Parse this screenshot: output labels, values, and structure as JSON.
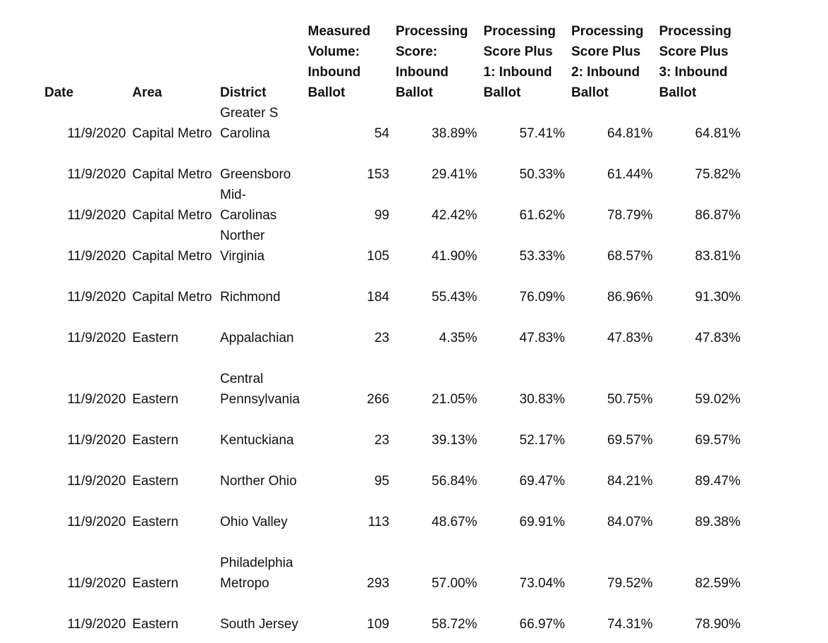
{
  "table": {
    "headers": [
      "Date",
      "Area",
      "District",
      "Measured Volume: Inbound Ballot",
      "Processing Score: Inbound Ballot",
      "Processing Score Plus 1: Inbound Ballot",
      "Processing Score Plus 2: Inbound Ballot",
      "Processing Score Plus 3: Inbound Ballot"
    ],
    "rows": [
      [
        "11/9/2020",
        "Capital Metro",
        "Greater S Carolina",
        "54",
        "38.89%",
        "57.41%",
        "64.81%",
        "64.81%"
      ],
      [
        "11/9/2020",
        "Capital Metro",
        "Greensboro",
        "153",
        "29.41%",
        "50.33%",
        "61.44%",
        "75.82%"
      ],
      [
        "11/9/2020",
        "Capital Metro",
        "Mid-Carolinas",
        "99",
        "42.42%",
        "61.62%",
        "78.79%",
        "86.87%"
      ],
      [
        "11/9/2020",
        "Capital Metro",
        "Norther Virginia",
        "105",
        "41.90%",
        "53.33%",
        "68.57%",
        "83.81%"
      ],
      [
        "11/9/2020",
        "Capital Metro",
        "Richmond",
        "184",
        "55.43%",
        "76.09%",
        "86.96%",
        "91.30%"
      ],
      [
        "11/9/2020",
        "Eastern",
        "Appalachian",
        "23",
        "4.35%",
        "47.83%",
        "47.83%",
        "47.83%"
      ],
      [
        "11/9/2020",
        "Eastern",
        "Central Pennsylvania",
        "266",
        "21.05%",
        "30.83%",
        "50.75%",
        "59.02%"
      ],
      [
        "11/9/2020",
        "Eastern",
        "Kentuckiana",
        "23",
        "39.13%",
        "52.17%",
        "69.57%",
        "69.57%"
      ],
      [
        "11/9/2020",
        "Eastern",
        "Norther Ohio",
        "95",
        "56.84%",
        "69.47%",
        "84.21%",
        "89.47%"
      ],
      [
        "11/9/2020",
        "Eastern",
        "Ohio Valley",
        "113",
        "48.67%",
        "69.91%",
        "84.07%",
        "89.38%"
      ],
      [
        "11/9/2020",
        "Eastern",
        "Philadelphia Metropo",
        "293",
        "57.00%",
        "73.04%",
        "79.52%",
        "82.59%"
      ],
      [
        "11/9/2020",
        "Eastern",
        "South Jersey",
        "109",
        "58.72%",
        "66.97%",
        "74.31%",
        "78.90%"
      ]
    ]
  }
}
